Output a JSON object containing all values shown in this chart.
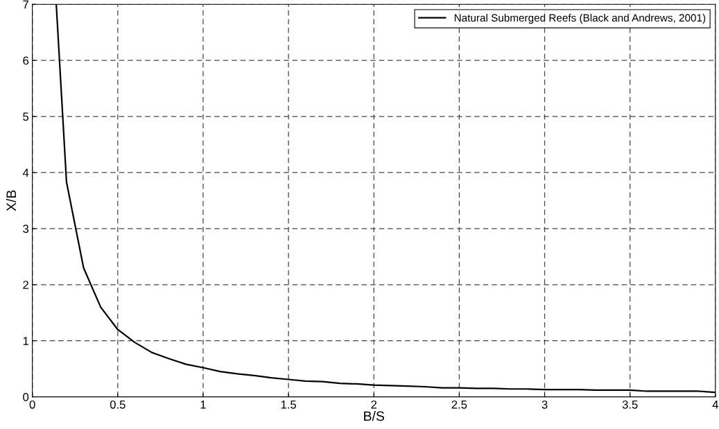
{
  "chart_data": {
    "type": "line",
    "xlabel": "B/S",
    "ylabel": "X/B",
    "x": [
      0.14,
      0.2,
      0.3,
      0.4,
      0.5,
      0.6,
      0.7,
      0.8,
      0.9,
      1.0,
      1.1,
      1.2,
      1.3,
      1.4,
      1.5,
      1.6,
      1.7,
      1.8,
      1.9,
      2.0,
      2.1,
      2.2,
      2.3,
      2.4,
      2.5,
      2.6,
      2.7,
      2.8,
      2.9,
      3.0,
      3.1,
      3.2,
      3.3,
      3.4,
      3.5,
      3.6,
      3.7,
      3.8,
      3.9,
      4.0
    ],
    "series": [
      {
        "name": "Natural Submerged Reefs (Black and Andrews, 2001)",
        "color": "#000000",
        "values": [
          7.0,
          3.83,
          2.3,
          1.6,
          1.2,
          0.97,
          0.79,
          0.68,
          0.58,
          0.52,
          0.45,
          0.41,
          0.38,
          0.34,
          0.31,
          0.28,
          0.27,
          0.24,
          0.23,
          0.21,
          0.2,
          0.19,
          0.18,
          0.16,
          0.16,
          0.15,
          0.15,
          0.14,
          0.14,
          0.13,
          0.13,
          0.13,
          0.12,
          0.12,
          0.12,
          0.1,
          0.1,
          0.1,
          0.1,
          0.08
        ]
      }
    ],
    "xlim": [
      0,
      4
    ],
    "ylim": [
      0,
      7
    ],
    "xticks": [
      0,
      0.5,
      1,
      1.5,
      2,
      2.5,
      3,
      3.5,
      4
    ],
    "yticks": [
      0,
      1,
      2,
      3,
      4,
      5,
      6,
      7
    ],
    "grid": true,
    "legend": "top right",
    "line_style": "solid",
    "marker": "none"
  }
}
